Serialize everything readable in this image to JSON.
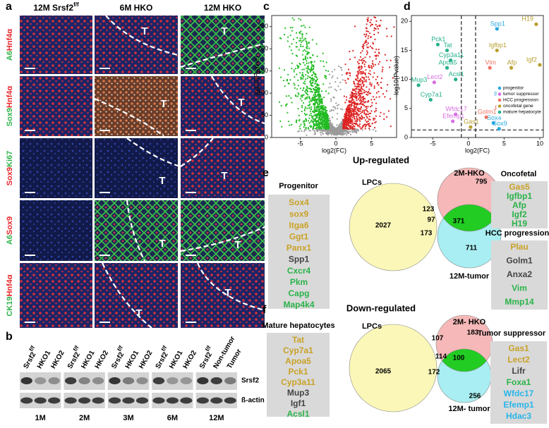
{
  "panel_labels": {
    "a": "a",
    "b": "b",
    "c": "c",
    "d": "d",
    "e": "e",
    "f": "f"
  },
  "panel_a": {
    "columns": [
      {
        "text": "12M Srsf2",
        "superscript": "f/f"
      },
      {
        "text": "6M HKO"
      },
      {
        "text": "12M HKO"
      }
    ],
    "rows": [
      [
        {
          "text": "A6",
          "color": "#2fb34a"
        },
        {
          "text": "Hnf4α",
          "color": "#e8262a"
        }
      ],
      [
        {
          "text": "Sox9",
          "color": "#2fb34a"
        },
        {
          "text": "Hnf4α",
          "color": "#e8262a"
        }
      ],
      [
        {
          "text": "Sox9",
          "color": "#e8262a"
        },
        {
          "text": "Ki67",
          "color": "#2fb34a"
        }
      ],
      [
        {
          "text": "A6",
          "color": "#2fb34a"
        },
        {
          "text": "Sox9",
          "color": "#e8262a"
        }
      ],
      [
        {
          "text": "CK19",
          "color": "#2fb34a"
        },
        {
          "text": "Hnf4α",
          "color": "#e8262a"
        }
      ]
    ],
    "tumor_label": "T"
  },
  "panel_b": {
    "groups": [
      {
        "label": "1M",
        "lanes": [
          {
            "text": "Srsf2",
            "superscript": "f/f"
          },
          {
            "text": "HKO1"
          },
          {
            "text": "HKO2"
          }
        ]
      },
      {
        "label": "2M",
        "lanes": [
          {
            "text": "Srsf2",
            "superscript": "f/f"
          },
          {
            "text": "HKO1"
          },
          {
            "text": "HKO2"
          }
        ]
      },
      {
        "label": "3M",
        "lanes": [
          {
            "text": "Srsf2",
            "superscript": "f/f"
          },
          {
            "text": "HKO1"
          },
          {
            "text": "HKO2"
          }
        ]
      },
      {
        "label": "6M",
        "lanes": [
          {
            "text": "Srsf2",
            "superscript": "f/f"
          },
          {
            "text": "HKO1"
          },
          {
            "text": "HKO2"
          }
        ]
      },
      {
        "label": "12M",
        "lanes": [
          {
            "text": "Srsf2",
            "superscript": "f/f"
          },
          {
            "text": "Non-tumor"
          },
          {
            "text": "Tumor"
          }
        ]
      }
    ],
    "bands": [
      "Srsf2",
      "ß-actin"
    ]
  },
  "chart_data": [
    {
      "type": "scatter",
      "xlabel": "log2(FC)",
      "ylabel": "-log10(Pvalue)",
      "xlim": [
        -9,
        8.5
      ],
      "ylim": [
        0,
        275
      ],
      "xticks": [
        -5,
        0,
        5
      ],
      "yticks": [
        0,
        50,
        100,
        150,
        200,
        250
      ]
    },
    {
      "type": "scatter",
      "xlabel": "log2(FC)",
      "ylabel": "-log10(Pvalue)",
      "xlim": [
        -8,
        10.5
      ],
      "ylim": [
        0,
        21
      ],
      "xticks": [
        -5,
        0,
        5,
        10
      ],
      "yticks": [
        0,
        5,
        10,
        15,
        20
      ],
      "reference_x": [
        -1,
        1
      ],
      "reference_y": 1.3,
      "legend": "lower right",
      "series": [
        {
          "name": "progenitor",
          "color": "#29a8e0",
          "labels": [
            "Spp1",
            "Itga6",
            "Sox4",
            "Sox9"
          ],
          "x": [
            4,
            4.5,
            3.5,
            4.3
          ],
          "values": [
            18.7,
            6.6,
            2.5,
            1.5
          ]
        },
        {
          "name": "tumor suppressor",
          "color": "#d86ee0",
          "labels": [
            "Lect2",
            "Wfdc17",
            "Efemp1"
          ],
          "x": [
            -4.8,
            -1.8,
            -2.2
          ],
          "values": [
            9.5,
            4,
            2.8
          ]
        },
        {
          "name": "HCC progression",
          "color": "#f07060",
          "labels": [
            "Vim",
            "Plau",
            "Golm1"
          ],
          "x": [
            3,
            4.5,
            2.5
          ],
          "values": [
            12,
            4.2,
            3.5
          ]
        },
        {
          "name": "oncofetal gene",
          "color": "#b8a030",
          "labels": [
            "H19",
            "Igfbp1",
            "Igf2",
            "Afp",
            "Gas1"
          ],
          "x": [
            9.5,
            4,
            10,
            6,
            0.3
          ],
          "values": [
            19.5,
            15,
            12.5,
            12,
            1.8
          ]
        },
        {
          "name": "mature hepatocyte",
          "color": "#26b08c",
          "labels": [
            "Pck1",
            "Tat",
            "Cyp3a11",
            "Apoa5",
            "Acsl1",
            "Mup3",
            "Cyp7a1"
          ],
          "x": [
            -4.3,
            -3,
            -2.5,
            -3,
            -1.8,
            -7,
            -5.3
          ],
          "values": [
            16,
            15,
            13.3,
            12,
            10,
            9,
            6.5
          ]
        }
      ]
    }
  ],
  "panel_e": {
    "title": "Up-regulated",
    "venn": {
      "sets": [
        "LPCs",
        "2M-HKO",
        "12M-tumor"
      ],
      "regions": {
        "a": 2027,
        "b": 795,
        "c": 711,
        "ab": 123,
        "ac": 173,
        "bc": 371,
        "abc": 97
      }
    },
    "lists": [
      {
        "title": "Progenitor",
        "items": [
          {
            "text": "Sox4",
            "color": "#c9a227"
          },
          {
            "text": "sox9",
            "color": "#c9a227"
          },
          {
            "text": "Itga6",
            "color": "#c9a227"
          },
          {
            "text": "Ggt1",
            "color": "#c9a227"
          },
          {
            "text": "Panx1",
            "color": "#c9a227"
          },
          {
            "text": "Spp1",
            "color": "#444444"
          },
          {
            "text": "Cxcr4",
            "color": "#2bb34a"
          },
          {
            "text": "Pkm",
            "color": "#2bb34a"
          },
          {
            "text": "Capg",
            "color": "#2bb34a"
          },
          {
            "text": "Map4k4",
            "color": "#2bb34a"
          }
        ]
      },
      {
        "title": "Oncofetal",
        "items": [
          {
            "text": "Gas5",
            "color": "#c9a227"
          },
          {
            "text": "Igfbp1",
            "color": "#2bb34a"
          },
          {
            "text": "Afp",
            "color": "#2bb34a"
          },
          {
            "text": "Igf2",
            "color": "#2bb34a"
          },
          {
            "text": "H19",
            "color": "#2bb34a"
          }
        ]
      },
      {
        "title": "HCC progression",
        "items": [
          {
            "text": "Plau",
            "color": "#c9a227"
          },
          {
            "text": "Golm1",
            "color": "#444444"
          },
          {
            "text": "Anxa2",
            "color": "#444444"
          },
          {
            "text": "Vim",
            "color": "#2bb34a"
          },
          {
            "text": "Mmp14",
            "color": "#2bb34a"
          }
        ]
      }
    ]
  },
  "panel_f": {
    "title": "Down-regulated",
    "venn": {
      "sets": [
        "LPCs",
        "2M- HKO",
        "12M- tumor"
      ],
      "regions": {
        "a": 2065,
        "b": 183,
        "c": 256,
        "ab": 107,
        "ac": 172,
        "bc": 100,
        "abc": 114
      }
    },
    "lists": [
      {
        "title": "Mature hepatocytes",
        "items": [
          {
            "text": "Tat",
            "color": "#c9a227"
          },
          {
            "text": "Cyp7a1",
            "color": "#c9a227"
          },
          {
            "text": "Apoa5",
            "color": "#c9a227"
          },
          {
            "text": "Pck1",
            "color": "#c9a227"
          },
          {
            "text": "Cyp3a11",
            "color": "#c9a227"
          },
          {
            "text": "Mup3",
            "color": "#444444"
          },
          {
            "text": "Igf1",
            "color": "#444444"
          },
          {
            "text": "Acsl1",
            "color": "#2bb34a"
          }
        ]
      },
      {
        "title": "Tumor suppressor",
        "items": [
          {
            "text": "Gas1",
            "color": "#c9a227"
          },
          {
            "text": "Lect2",
            "color": "#c9a227"
          },
          {
            "text": "Lifr",
            "color": "#444444"
          },
          {
            "text": "Foxa1",
            "color": "#2bb34a"
          },
          {
            "text": "Wfdc17",
            "color": "#29b5e8"
          },
          {
            "text": "Efemp1",
            "color": "#29b5e8"
          },
          {
            "text": "Hdac3",
            "color": "#29b5e8"
          }
        ]
      }
    ]
  }
}
